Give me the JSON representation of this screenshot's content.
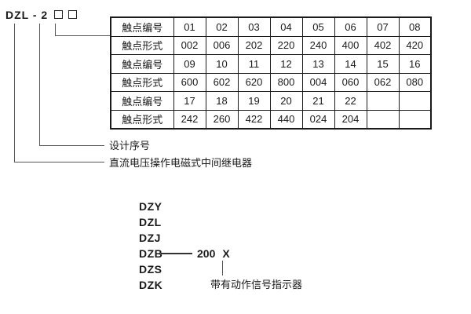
{
  "title": {
    "model_code": "DZL - 2",
    "placeholder_boxes": 2
  },
  "table": {
    "rows": [
      {
        "label": "触点编号",
        "cells": [
          "01",
          "02",
          "03",
          "04",
          "05",
          "06",
          "07",
          "08"
        ]
      },
      {
        "label": "触点形式",
        "cells": [
          "002",
          "006",
          "202",
          "220",
          "240",
          "400",
          "402",
          "420"
        ]
      },
      {
        "label": "触点编号",
        "cells": [
          "09",
          "10",
          "11",
          "12",
          "13",
          "14",
          "15",
          "16"
        ]
      },
      {
        "label": "触点形式",
        "cells": [
          "600",
          "602",
          "620",
          "800",
          "004",
          "060",
          "062",
          "080"
        ]
      },
      {
        "label": "触点编号",
        "cells": [
          "17",
          "18",
          "19",
          "20",
          "21",
          "22",
          "",
          ""
        ]
      },
      {
        "label": "触点形式",
        "cells": [
          "242",
          "260",
          "422",
          "440",
          "024",
          "204",
          "",
          ""
        ]
      }
    ]
  },
  "callouts": {
    "design_serial_label": "设计序号",
    "relay_type_label": "直流电压操作电磁式中间继电器"
  },
  "model_list": {
    "items": [
      "DZY",
      "DZL",
      "DZJ",
      "DZB",
      "DZS",
      "DZK"
    ],
    "dzb_value": "200",
    "dzb_variable": "X",
    "indicator_label": "带有动作信号指示器"
  }
}
